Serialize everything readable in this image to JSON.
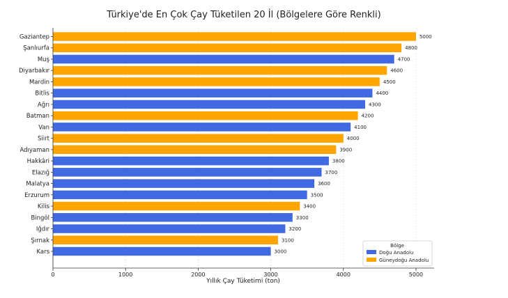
{
  "chart_data": {
    "type": "bar",
    "orientation": "horizontal",
    "title": "Türkiye'de En Çok Çay Tüketilen 20 İl (Bölgelere Göre Renkli)",
    "xlabel": "Yıllık Çay Tüketimi (ton)",
    "ylabel": "",
    "xlim": [
      0,
      5250
    ],
    "xticks": [
      0,
      1000,
      2000,
      3000,
      4000,
      5000
    ],
    "grid": "vertical",
    "categories": [
      "Gaziantep",
      "Şanlıurfa",
      "Muş",
      "Diyarbakır",
      "Mardin",
      "Bitlis",
      "Ağrı",
      "Batman",
      "Van",
      "Siirt",
      "Adıyaman",
      "Hakkâri",
      "Elazığ",
      "Malatya",
      "Erzurum",
      "Kilis",
      "Bingöl",
      "Iğdır",
      "Şırnak",
      "Kars"
    ],
    "values": [
      5000,
      4800,
      4700,
      4600,
      4500,
      4400,
      4300,
      4200,
      4100,
      4000,
      3900,
      3800,
      3700,
      3600,
      3500,
      3400,
      3300,
      3200,
      3100,
      3000
    ],
    "regions": [
      "Güneydoğu Anadolu",
      "Güneydoğu Anadolu",
      "Doğu Anadolu",
      "Güneydoğu Anadolu",
      "Güneydoğu Anadolu",
      "Doğu Anadolu",
      "Doğu Anadolu",
      "Güneydoğu Anadolu",
      "Doğu Anadolu",
      "Güneydoğu Anadolu",
      "Güneydoğu Anadolu",
      "Doğu Anadolu",
      "Doğu Anadolu",
      "Doğu Anadolu",
      "Doğu Anadolu",
      "Güneydoğu Anadolu",
      "Doğu Anadolu",
      "Doğu Anadolu",
      "Güneydoğu Anadolu",
      "Doğu Anadolu"
    ],
    "series": [
      {
        "name": "Doğu Anadolu",
        "color": "#4169E1"
      },
      {
        "name": "Güneydoğu Anadolu",
        "color": "#FFA500"
      }
    ],
    "legend": {
      "title": "Bölge",
      "position": "lower-right"
    }
  }
}
